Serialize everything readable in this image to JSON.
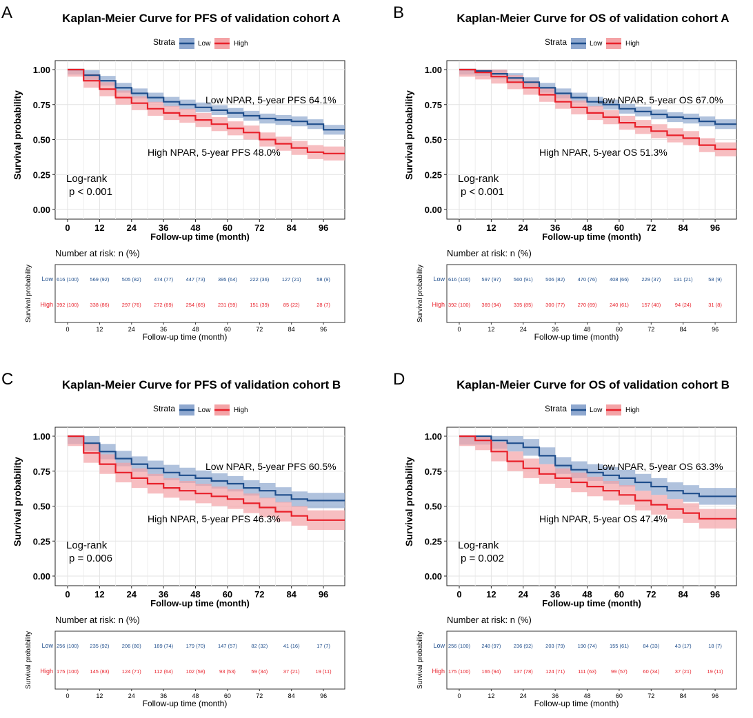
{
  "figure": {
    "strata_label": "Strata",
    "risk_header": "Number at risk: n (%)",
    "risk_ylabel": "Survival probability",
    "ylabel": "Survival probability",
    "xlabel": "Follow-up time (month)",
    "colors": {
      "low": "#1f4e8c",
      "high": "#e8202a",
      "low_band": "#8fa8cf",
      "high_band": "#f4a3a6"
    }
  },
  "chart_data": [
    {
      "type": "line",
      "letter": "A",
      "endpoint": "PFS",
      "title": "Kaplan-Meier Curve for PFS of validation cohort A",
      "xlabel": "Follow-up time (month)",
      "ylabel": "Survival probability",
      "xlim": [
        0,
        104
      ],
      "ylim": [
        0,
        1
      ],
      "xticks": [
        0,
        12,
        24,
        36,
        48,
        60,
        72,
        84,
        96
      ],
      "yticks": [
        "0.00",
        "0.25",
        "0.50",
        "0.75",
        "1.00"
      ],
      "legend": [
        "Low",
        "High"
      ],
      "series": [
        {
          "name": "Low",
          "points": [
            [
              0,
              1.0
            ],
            [
              6,
              0.96
            ],
            [
              12,
              0.92
            ],
            [
              18,
              0.87
            ],
            [
              24,
              0.83
            ],
            [
              30,
              0.8
            ],
            [
              36,
              0.77
            ],
            [
              42,
              0.75
            ],
            [
              48,
              0.73
            ],
            [
              54,
              0.71
            ],
            [
              60,
              0.69
            ],
            [
              66,
              0.67
            ],
            [
              72,
              0.65
            ],
            [
              78,
              0.64
            ],
            [
              84,
              0.63
            ],
            [
              90,
              0.61
            ],
            [
              96,
              0.57
            ],
            [
              104,
              0.57
            ]
          ],
          "band": 0.035,
          "annotation": "Low NPAR, 5-year PFS 64.1%"
        },
        {
          "name": "High",
          "points": [
            [
              0,
              1.0
            ],
            [
              6,
              0.92
            ],
            [
              12,
              0.86
            ],
            [
              18,
              0.8
            ],
            [
              24,
              0.76
            ],
            [
              30,
              0.72
            ],
            [
              36,
              0.69
            ],
            [
              42,
              0.67
            ],
            [
              48,
              0.64
            ],
            [
              54,
              0.61
            ],
            [
              60,
              0.58
            ],
            [
              66,
              0.55
            ],
            [
              72,
              0.5
            ],
            [
              78,
              0.47
            ],
            [
              84,
              0.44
            ],
            [
              90,
              0.41
            ],
            [
              96,
              0.4
            ],
            [
              104,
              0.4
            ]
          ],
          "band": 0.05,
          "annotation": "High NPAR, 5-year PFS 48.0%"
        }
      ],
      "logrank": [
        "Log-rank",
        "p < 0.001"
      ],
      "risk_table": {
        "low": [
          "616 (100)",
          "569 (92)",
          "505 (82)",
          "474 (77)",
          "447 (73)",
          "395 (64)",
          "222 (36)",
          "127 (21)",
          "58 (9)"
        ],
        "high": [
          "392 (100)",
          "338 (86)",
          "297 (76)",
          "272 (69)",
          "254 (65)",
          "231 (59)",
          "151 (39)",
          "85 (22)",
          "28 (7)"
        ]
      }
    },
    {
      "type": "line",
      "letter": "B",
      "endpoint": "OS",
      "title": "Kaplan-Meier Curve for OS of validation cohort A",
      "xlabel": "Follow-up time (month)",
      "ylabel": "Survival probability",
      "xlim": [
        0,
        104
      ],
      "ylim": [
        0,
        1
      ],
      "xticks": [
        0,
        12,
        24,
        36,
        48,
        60,
        72,
        84,
        96
      ],
      "yticks": [
        "0.00",
        "0.25",
        "0.50",
        "0.75",
        "1.00"
      ],
      "legend": [
        "Low",
        "High"
      ],
      "series": [
        {
          "name": "Low",
          "points": [
            [
              0,
              1.0
            ],
            [
              6,
              0.99
            ],
            [
              12,
              0.97
            ],
            [
              18,
              0.94
            ],
            [
              24,
              0.91
            ],
            [
              30,
              0.87
            ],
            [
              36,
              0.83
            ],
            [
              42,
              0.8
            ],
            [
              48,
              0.77
            ],
            [
              54,
              0.75
            ],
            [
              60,
              0.72
            ],
            [
              66,
              0.7
            ],
            [
              72,
              0.68
            ],
            [
              78,
              0.66
            ],
            [
              84,
              0.65
            ],
            [
              90,
              0.63
            ],
            [
              96,
              0.61
            ],
            [
              104,
              0.61
            ]
          ],
          "band": 0.035,
          "annotation": "Low NPAR, 5-year OS 67.0%"
        },
        {
          "name": "High",
          "points": [
            [
              0,
              1.0
            ],
            [
              6,
              0.98
            ],
            [
              12,
              0.95
            ],
            [
              18,
              0.91
            ],
            [
              24,
              0.87
            ],
            [
              30,
              0.82
            ],
            [
              36,
              0.77
            ],
            [
              42,
              0.73
            ],
            [
              48,
              0.69
            ],
            [
              54,
              0.66
            ],
            [
              60,
              0.62
            ],
            [
              66,
              0.59
            ],
            [
              72,
              0.56
            ],
            [
              78,
              0.53
            ],
            [
              84,
              0.51
            ],
            [
              90,
              0.46
            ],
            [
              96,
              0.43
            ],
            [
              104,
              0.43
            ]
          ],
          "band": 0.05,
          "annotation": "High NPAR, 5-year OS 51.3%"
        }
      ],
      "logrank": [
        "Log-rank",
        "p < 0.001"
      ],
      "risk_table": {
        "low": [
          "616 (100)",
          "597 (97)",
          "560 (91)",
          "506 (82)",
          "470 (76)",
          "408 (66)",
          "229 (37)",
          "131 (21)",
          "58 (9)"
        ],
        "high": [
          "392 (100)",
          "369 (94)",
          "335 (85)",
          "300 (77)",
          "270 (69)",
          "240 (61)",
          "157 (40)",
          "94 (24)",
          "31 (8)"
        ]
      }
    },
    {
      "type": "line",
      "letter": "C",
      "endpoint": "PFS",
      "title": "Kaplan-Meier Curve for PFS of validation cohort B",
      "xlabel": "Follow-up time (month)",
      "ylabel": "Survival probability",
      "xlim": [
        0,
        104
      ],
      "ylim": [
        0,
        1
      ],
      "xticks": [
        0,
        12,
        24,
        36,
        48,
        60,
        72,
        84,
        96
      ],
      "yticks": [
        "0.00",
        "0.25",
        "0.50",
        "0.75",
        "1.00"
      ],
      "legend": [
        "Low",
        "High"
      ],
      "series": [
        {
          "name": "Low",
          "points": [
            [
              0,
              1.0
            ],
            [
              6,
              0.95
            ],
            [
              12,
              0.89
            ],
            [
              18,
              0.84
            ],
            [
              24,
              0.8
            ],
            [
              30,
              0.77
            ],
            [
              36,
              0.74
            ],
            [
              42,
              0.72
            ],
            [
              48,
              0.7
            ],
            [
              54,
              0.68
            ],
            [
              60,
              0.66
            ],
            [
              66,
              0.63
            ],
            [
              72,
              0.61
            ],
            [
              78,
              0.58
            ],
            [
              84,
              0.55
            ],
            [
              90,
              0.54
            ],
            [
              96,
              0.54
            ],
            [
              104,
              0.54
            ]
          ],
          "band": 0.055,
          "annotation": "Low NPAR, 5-year PFS 60.5%"
        },
        {
          "name": "High",
          "points": [
            [
              0,
              1.0
            ],
            [
              6,
              0.88
            ],
            [
              12,
              0.8
            ],
            [
              18,
              0.74
            ],
            [
              24,
              0.7
            ],
            [
              30,
              0.66
            ],
            [
              36,
              0.63
            ],
            [
              42,
              0.61
            ],
            [
              48,
              0.59
            ],
            [
              54,
              0.57
            ],
            [
              60,
              0.55
            ],
            [
              66,
              0.52
            ],
            [
              72,
              0.49
            ],
            [
              78,
              0.46
            ],
            [
              84,
              0.43
            ],
            [
              90,
              0.4
            ],
            [
              96,
              0.4
            ],
            [
              104,
              0.4
            ]
          ],
          "band": 0.07,
          "annotation": "High NPAR, 5-year PFS 46.3%"
        }
      ],
      "logrank": [
        "Log-rank",
        "p = 0.006"
      ],
      "risk_table": {
        "low": [
          "256 (100)",
          "235 (92)",
          "206 (80)",
          "189 (74)",
          "179 (70)",
          "147 (57)",
          "82 (32)",
          "41 (16)",
          "17 (7)"
        ],
        "high": [
          "175 (100)",
          "145 (83)",
          "124 (71)",
          "112 (64)",
          "102 (58)",
          "93 (53)",
          "59 (34)",
          "37 (21)",
          "19 (11)"
        ]
      }
    },
    {
      "type": "line",
      "letter": "D",
      "endpoint": "OS",
      "title": "Kaplan-Meier Curve for OS of validation cohort B",
      "xlabel": "Follow-up time (month)",
      "ylabel": "Survival probability",
      "xlim": [
        0,
        104
      ],
      "ylim": [
        0,
        1
      ],
      "xticks": [
        0,
        12,
        24,
        36,
        48,
        60,
        72,
        84,
        96
      ],
      "yticks": [
        "0.00",
        "0.25",
        "0.50",
        "0.75",
        "1.00"
      ],
      "legend": [
        "Low",
        "High"
      ],
      "series": [
        {
          "name": "Low",
          "points": [
            [
              0,
              1.0
            ],
            [
              6,
              1.0
            ],
            [
              12,
              0.97
            ],
            [
              18,
              0.95
            ],
            [
              24,
              0.92
            ],
            [
              30,
              0.86
            ],
            [
              36,
              0.79
            ],
            [
              42,
              0.76
            ],
            [
              48,
              0.74
            ],
            [
              54,
              0.72
            ],
            [
              60,
              0.7
            ],
            [
              66,
              0.67
            ],
            [
              72,
              0.64
            ],
            [
              78,
              0.61
            ],
            [
              84,
              0.59
            ],
            [
              90,
              0.57
            ],
            [
              96,
              0.57
            ],
            [
              104,
              0.57
            ]
          ],
          "band": 0.06,
          "annotation": "Low NPAR, 5-year OS 63.3%"
        },
        {
          "name": "High",
          "points": [
            [
              0,
              1.0
            ],
            [
              6,
              0.97
            ],
            [
              12,
              0.89
            ],
            [
              18,
              0.82
            ],
            [
              24,
              0.77
            ],
            [
              30,
              0.73
            ],
            [
              36,
              0.7
            ],
            [
              42,
              0.67
            ],
            [
              48,
              0.64
            ],
            [
              54,
              0.61
            ],
            [
              60,
              0.58
            ],
            [
              66,
              0.54
            ],
            [
              72,
              0.51
            ],
            [
              78,
              0.48
            ],
            [
              84,
              0.45
            ],
            [
              90,
              0.41
            ],
            [
              96,
              0.41
            ],
            [
              104,
              0.41
            ]
          ],
          "band": 0.07,
          "annotation": "High NPAR, 5-year OS 47.4%"
        }
      ],
      "logrank": [
        "Log-rank",
        "p = 0.002"
      ],
      "risk_table": {
        "low": [
          "256 (100)",
          "248 (97)",
          "236 (92)",
          "203 (79)",
          "190 (74)",
          "155 (61)",
          "84 (33)",
          "43 (17)",
          "18 (7)"
        ],
        "high": [
          "175 (100)",
          "165 (94)",
          "137 (78)",
          "124 (71)",
          "111 (63)",
          "99 (57)",
          "60 (34)",
          "37 (21)",
          "19 (11)"
        ]
      }
    }
  ]
}
